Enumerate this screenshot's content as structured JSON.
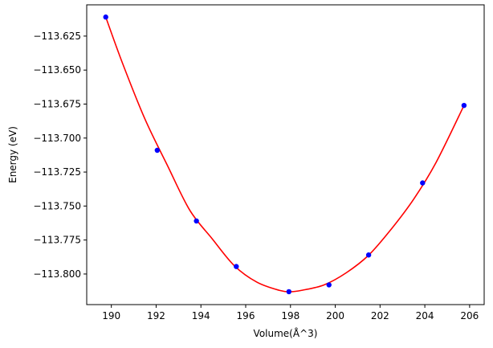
{
  "chart_data": {
    "type": "scatter",
    "xlabel": "Volume(Å^3)",
    "ylabel": "Energy (eV)",
    "xlim": [
      188.9,
      206.65
    ],
    "ylim": [
      -113.8225,
      -113.602
    ],
    "x_ticks": [
      190,
      192,
      194,
      196,
      198,
      200,
      202,
      204,
      206
    ],
    "y_ticks": [
      -113.625,
      -113.65,
      -113.675,
      -113.7,
      -113.725,
      -113.75,
      -113.775,
      -113.8
    ],
    "x_tick_labels": [
      "190",
      "192",
      "194",
      "196",
      "198",
      "200",
      "202",
      "204",
      "206"
    ],
    "y_tick_labels": [
      "−113.625",
      "−113.650",
      "−113.675",
      "−113.700",
      "−113.725",
      "−113.750",
      "−113.775",
      "−113.800"
    ],
    "series": [
      {
        "kind": "points",
        "color": "#0000ff",
        "x": [
          189.75,
          192.05,
          193.8,
          195.58,
          197.93,
          199.72,
          201.49,
          203.9,
          205.75
        ],
        "y": [
          -113.611,
          -113.709,
          -113.761,
          -113.7945,
          -113.813,
          -113.808,
          -113.786,
          -113.733,
          -113.676
        ]
      },
      {
        "kind": "fit-curve",
        "color": "#ff0000",
        "x": [
          189.75,
          190.5,
          191.5,
          192.5,
          193.5,
          194.5,
          195.5,
          196.5,
          197.5,
          198.0,
          198.5,
          199.5,
          200.5,
          201.5,
          202.5,
          203.5,
          204.5,
          205.75
        ],
        "y": [
          -113.611,
          -113.645,
          -113.686,
          -113.72,
          -113.753,
          -113.774,
          -113.794,
          -113.806,
          -113.812,
          -113.813,
          -113.812,
          -113.808,
          -113.799,
          -113.786,
          -113.767,
          -113.745,
          -113.718,
          -113.676
        ]
      }
    ],
    "grid": false,
    "legend": "none"
  }
}
